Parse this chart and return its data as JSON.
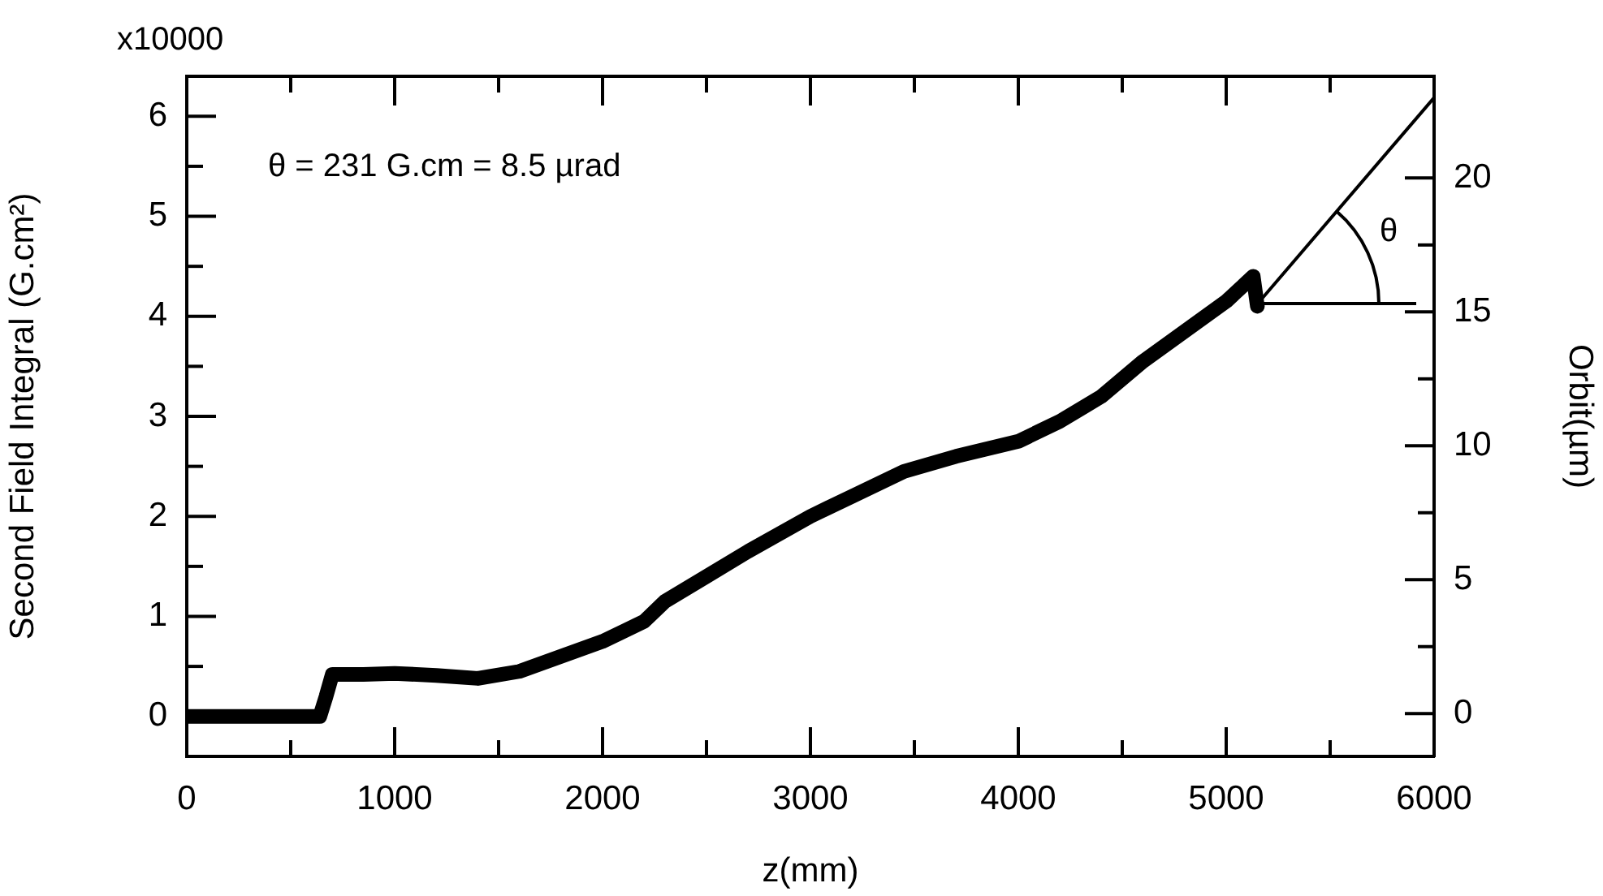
{
  "chart_data": {
    "type": "line",
    "xlabel": "z(mm)",
    "ylabel": "Second Field Integral (G.cm²)",
    "y2label": "Orbit(µm)",
    "annotations": [
      "θ = 231 G.cm = 8.5 µrad",
      "x10000",
      "θ"
    ],
    "xlim": [
      0,
      6000
    ],
    "ylim": [
      -0.4,
      6.4
    ],
    "y2lim": [
      -1.6,
      23.8
    ],
    "xticks": [
      0,
      {
        "value": 500,
        "label": null
      },
      1000,
      {
        "value": 1500,
        "label": null
      },
      2000,
      {
        "value": 2500,
        "label": null
      },
      3000,
      {
        "value": 3500,
        "label": null
      },
      4000,
      {
        "value": 4500,
        "label": null
      },
      5000,
      {
        "value": 5500,
        "label": null
      },
      6000
    ],
    "yticks": [
      0,
      {
        "value": 0.5,
        "label": null
      },
      1,
      {
        "value": 1.5,
        "label": null
      },
      2,
      {
        "value": 2.5,
        "label": null
      },
      3,
      {
        "value": 3.5,
        "label": null
      },
      4,
      {
        "value": 4.5,
        "label": null
      },
      5,
      {
        "value": 5.5,
        "label": null
      },
      6
    ],
    "y2ticks": [
      0,
      {
        "value": 2.5,
        "label": null
      },
      5,
      {
        "value": 7.5,
        "label": null
      },
      10,
      {
        "value": 12.5,
        "label": null
      },
      15,
      {
        "value": 17.5,
        "label": null
      },
      20
    ],
    "grid": false,
    "legend": false,
    "marker": "none",
    "line_style": "solid",
    "series": [
      {
        "color": "#000000",
        "x": [
          0,
          300,
          640,
          670,
          700,
          850,
          1000,
          1200,
          1400,
          1600,
          1800,
          2000,
          2200,
          2300,
          2500,
          2700,
          3000,
          3200,
          3450,
          3700,
          4000,
          4200,
          4400,
          4600,
          4800,
          5000,
          5130,
          5150
        ],
        "values": [
          0,
          0,
          0,
          0.2,
          0.42,
          0.42,
          0.43,
          0.41,
          0.38,
          0.45,
          0.6,
          0.75,
          0.95,
          1.15,
          1.4,
          1.65,
          2.0,
          2.2,
          2.45,
          2.6,
          2.75,
          2.95,
          3.2,
          3.55,
          3.85,
          4.15,
          4.4,
          4.1
        ]
      },
      {
        "color": "#000000",
        "axis": "y2",
        "x": [
          5150,
          6000
        ],
        "values": [
          15.3,
          23.0
        ]
      }
    ]
  }
}
